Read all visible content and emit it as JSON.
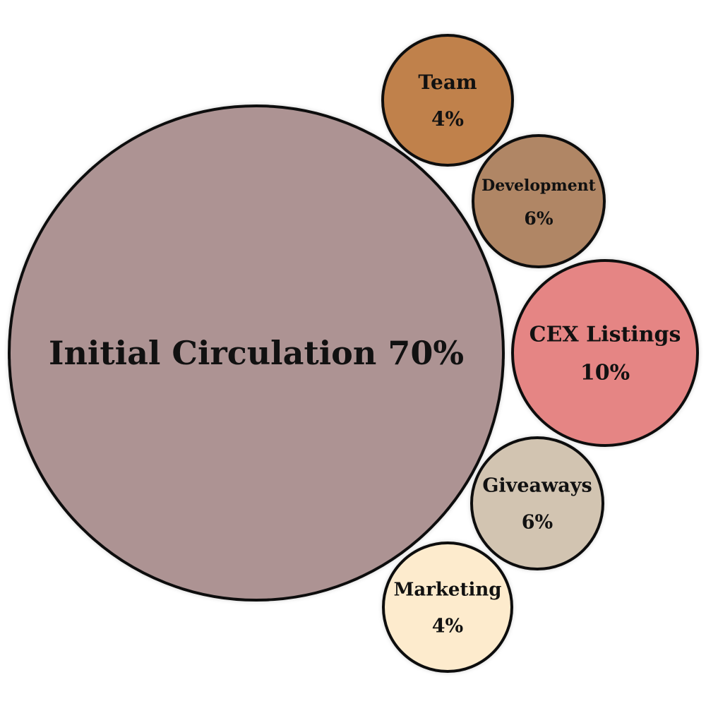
{
  "chart_data": {
    "type": "bubble",
    "title": "",
    "items": [
      {
        "label": "Initial Circulation",
        "value_label": "70%",
        "value": 70,
        "color": "#ad9393"
      },
      {
        "label": "Team",
        "value_label": "4%",
        "value": 4,
        "color": "#c0814b"
      },
      {
        "label": "Development",
        "value_label": "6%",
        "value": 6,
        "color": "#b08665"
      },
      {
        "label": "CEX Listings",
        "value_label": "10%",
        "value": 10,
        "color": "#e58584"
      },
      {
        "label": "Giveaways",
        "value_label": "6%",
        "value": 6,
        "color": "#d2c4b1"
      },
      {
        "label": "Marketing",
        "value_label": "4%",
        "value": 4,
        "color": "#fdebcd"
      }
    ]
  }
}
